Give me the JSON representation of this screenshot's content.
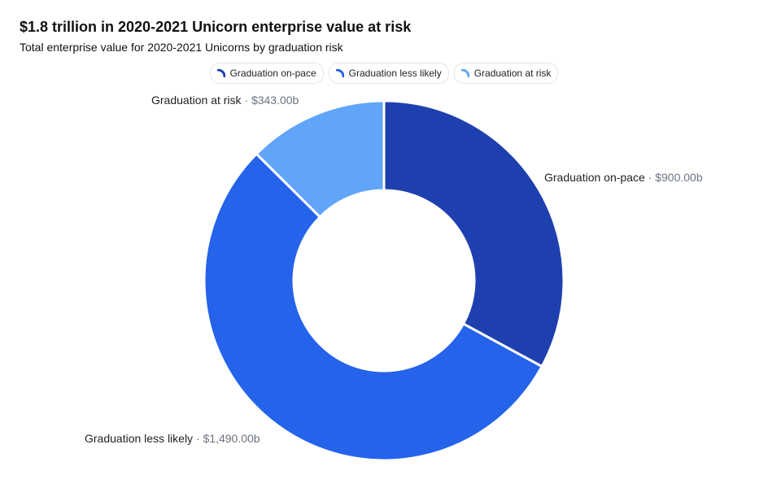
{
  "title": "$1.8 trillion in 2020-2021 Unicorn enterprise value at risk",
  "subtitle": "Total enterprise value for 2020-2021 Unicorns by graduation risk",
  "chart_data": {
    "type": "pie",
    "variant": "donut",
    "title": "$1.8 trillion in 2020-2021 Unicorn enterprise value at risk",
    "subtitle": "Total enterprise value for 2020-2021 Unicorns by graduation risk",
    "legend_position": "top-center",
    "separator": " · ",
    "slices": [
      {
        "name": "Graduation on-pace",
        "value": 900.0,
        "value_label": "$900.00b",
        "color": "#1e40af"
      },
      {
        "name": "Graduation less likely",
        "value": 1490.0,
        "value_label": "$1,490.00b",
        "color": "#2563eb"
      },
      {
        "name": "Graduation at risk",
        "value": 343.0,
        "value_label": "$343.00b",
        "color": "#60a5fa"
      }
    ]
  },
  "colors": {
    "label_name": "#222222",
    "label_value": "#6b7280",
    "slice_border": "#ffffff"
  }
}
